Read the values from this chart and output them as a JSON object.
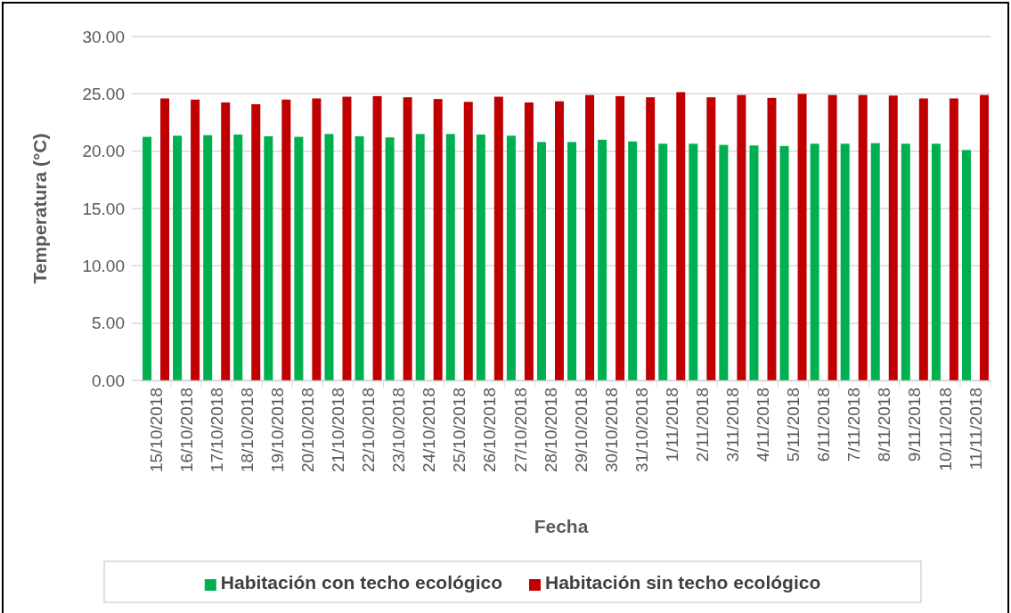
{
  "chart_data": {
    "type": "bar",
    "xlabel": "Fecha",
    "ylabel": "Temperatura (°C)",
    "categories": [
      "15/10/2018",
      "16/10/2018",
      "17/10/2018",
      "18/10/2018",
      "19/10/2018",
      "20/10/2018",
      "21/10/2018",
      "22/10/2018",
      "23/10/2018",
      "24/10/2018",
      "25/10/2018",
      "26/10/2018",
      "27/10/2018",
      "28/10/2018",
      "29/10/2018",
      "30/10/2018",
      "31/10/2018",
      "1/11/2018",
      "2/11/2018",
      "3/11/2018",
      "4/11/2018",
      "5/11/2018",
      "6/11/2018",
      "7/11/2018",
      "8/11/2018",
      "9/11/2018",
      "10/11/2018",
      "11/11/2018"
    ],
    "series": [
      {
        "name": "Habitación con techo ecológico",
        "color": "#00b050",
        "values": [
          21.25,
          21.35,
          21.4,
          21.45,
          21.3,
          21.25,
          21.5,
          21.3,
          21.2,
          21.5,
          21.5,
          21.45,
          21.35,
          20.8,
          20.8,
          21.0,
          20.85,
          20.65,
          20.65,
          20.55,
          20.5,
          20.45,
          20.65,
          20.65,
          20.7,
          20.65,
          20.65,
          20.1
        ]
      },
      {
        "name": "Habitación sin techo ecológico",
        "color": "#c00000",
        "values": [
          24.6,
          24.5,
          24.25,
          24.1,
          24.5,
          24.6,
          24.75,
          24.8,
          24.7,
          24.55,
          24.3,
          24.75,
          24.25,
          24.35,
          24.9,
          24.8,
          24.7,
          25.15,
          24.7,
          24.9,
          24.65,
          25.0,
          24.9,
          24.9,
          24.85,
          24.6,
          24.6,
          24.9
        ]
      }
    ],
    "ylim": [
      0,
      30
    ],
    "yticks": [
      {
        "value": 0,
        "label": "0.00"
      },
      {
        "value": 5,
        "label": "5.00"
      },
      {
        "value": 10,
        "label": "10.00"
      },
      {
        "value": 15,
        "label": "15.00"
      },
      {
        "value": 20,
        "label": "20.00"
      },
      {
        "value": 25,
        "label": "25.00"
      },
      {
        "value": 30,
        "label": "30.00"
      }
    ],
    "grid": "y",
    "legend": "bottom"
  }
}
